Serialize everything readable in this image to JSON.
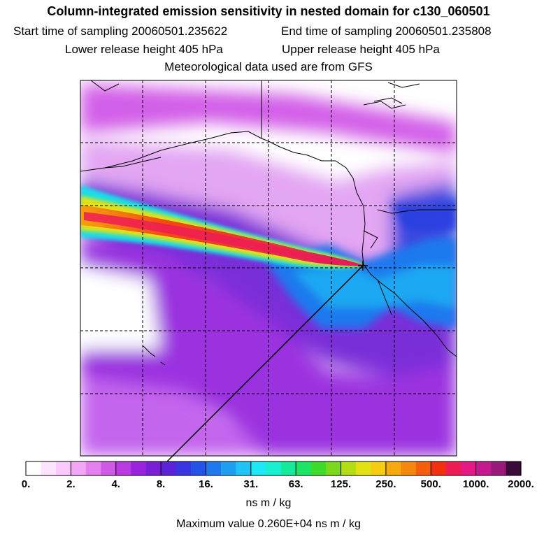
{
  "header": {
    "title": "Column-integrated emission sensitivity in nested domain for c130_060501",
    "start_label": "Start time of sampling 20060501.235622",
    "end_label": "End time of sampling 20060501.235808",
    "lower_label": "Lower release height  405 hPa",
    "upper_label": "Upper release height  405 hPa",
    "met_label": "Meteorological data used are from GFS"
  },
  "legend": {
    "tick_labels": [
      "0.",
      "2.",
      "4.",
      "8.",
      "16.",
      "31.",
      "63.",
      "125.",
      "250.",
      "500.",
      "1000.",
      "2000."
    ],
    "unit": "ns m / kg",
    "max_value": "Maximum value  0.260E+04 ns m / kg",
    "colors": [
      "#ffffff",
      "#fde4fd",
      "#fbc8fb",
      "#f3a6f5",
      "#e37fee",
      "#d05ae8",
      "#b93ae2",
      "#9a24dd",
      "#7a1fd6",
      "#5a23d8",
      "#3b34e2",
      "#2453e8",
      "#1f79ee",
      "#1f9ef2",
      "#1fc4f5",
      "#1ee8f5",
      "#19f0d0",
      "#17e99a",
      "#1de465",
      "#3ddb2a",
      "#7ad81d",
      "#b2dd17",
      "#e1e114",
      "#f5cc12",
      "#f7aa10",
      "#f6870e",
      "#f55e0d",
      "#f2300f",
      "#ee1c55",
      "#e41a84",
      "#c51a8f",
      "#9a1a7a",
      "#3a0a3a"
    ]
  },
  "colors": {
    "band_core": "#ee1c1c",
    "band_mid": "#f5a20e",
    "band_outer": "#18e8e8",
    "background_plume": "#b93ae2",
    "ocean_blue": "#1f79ee"
  }
}
